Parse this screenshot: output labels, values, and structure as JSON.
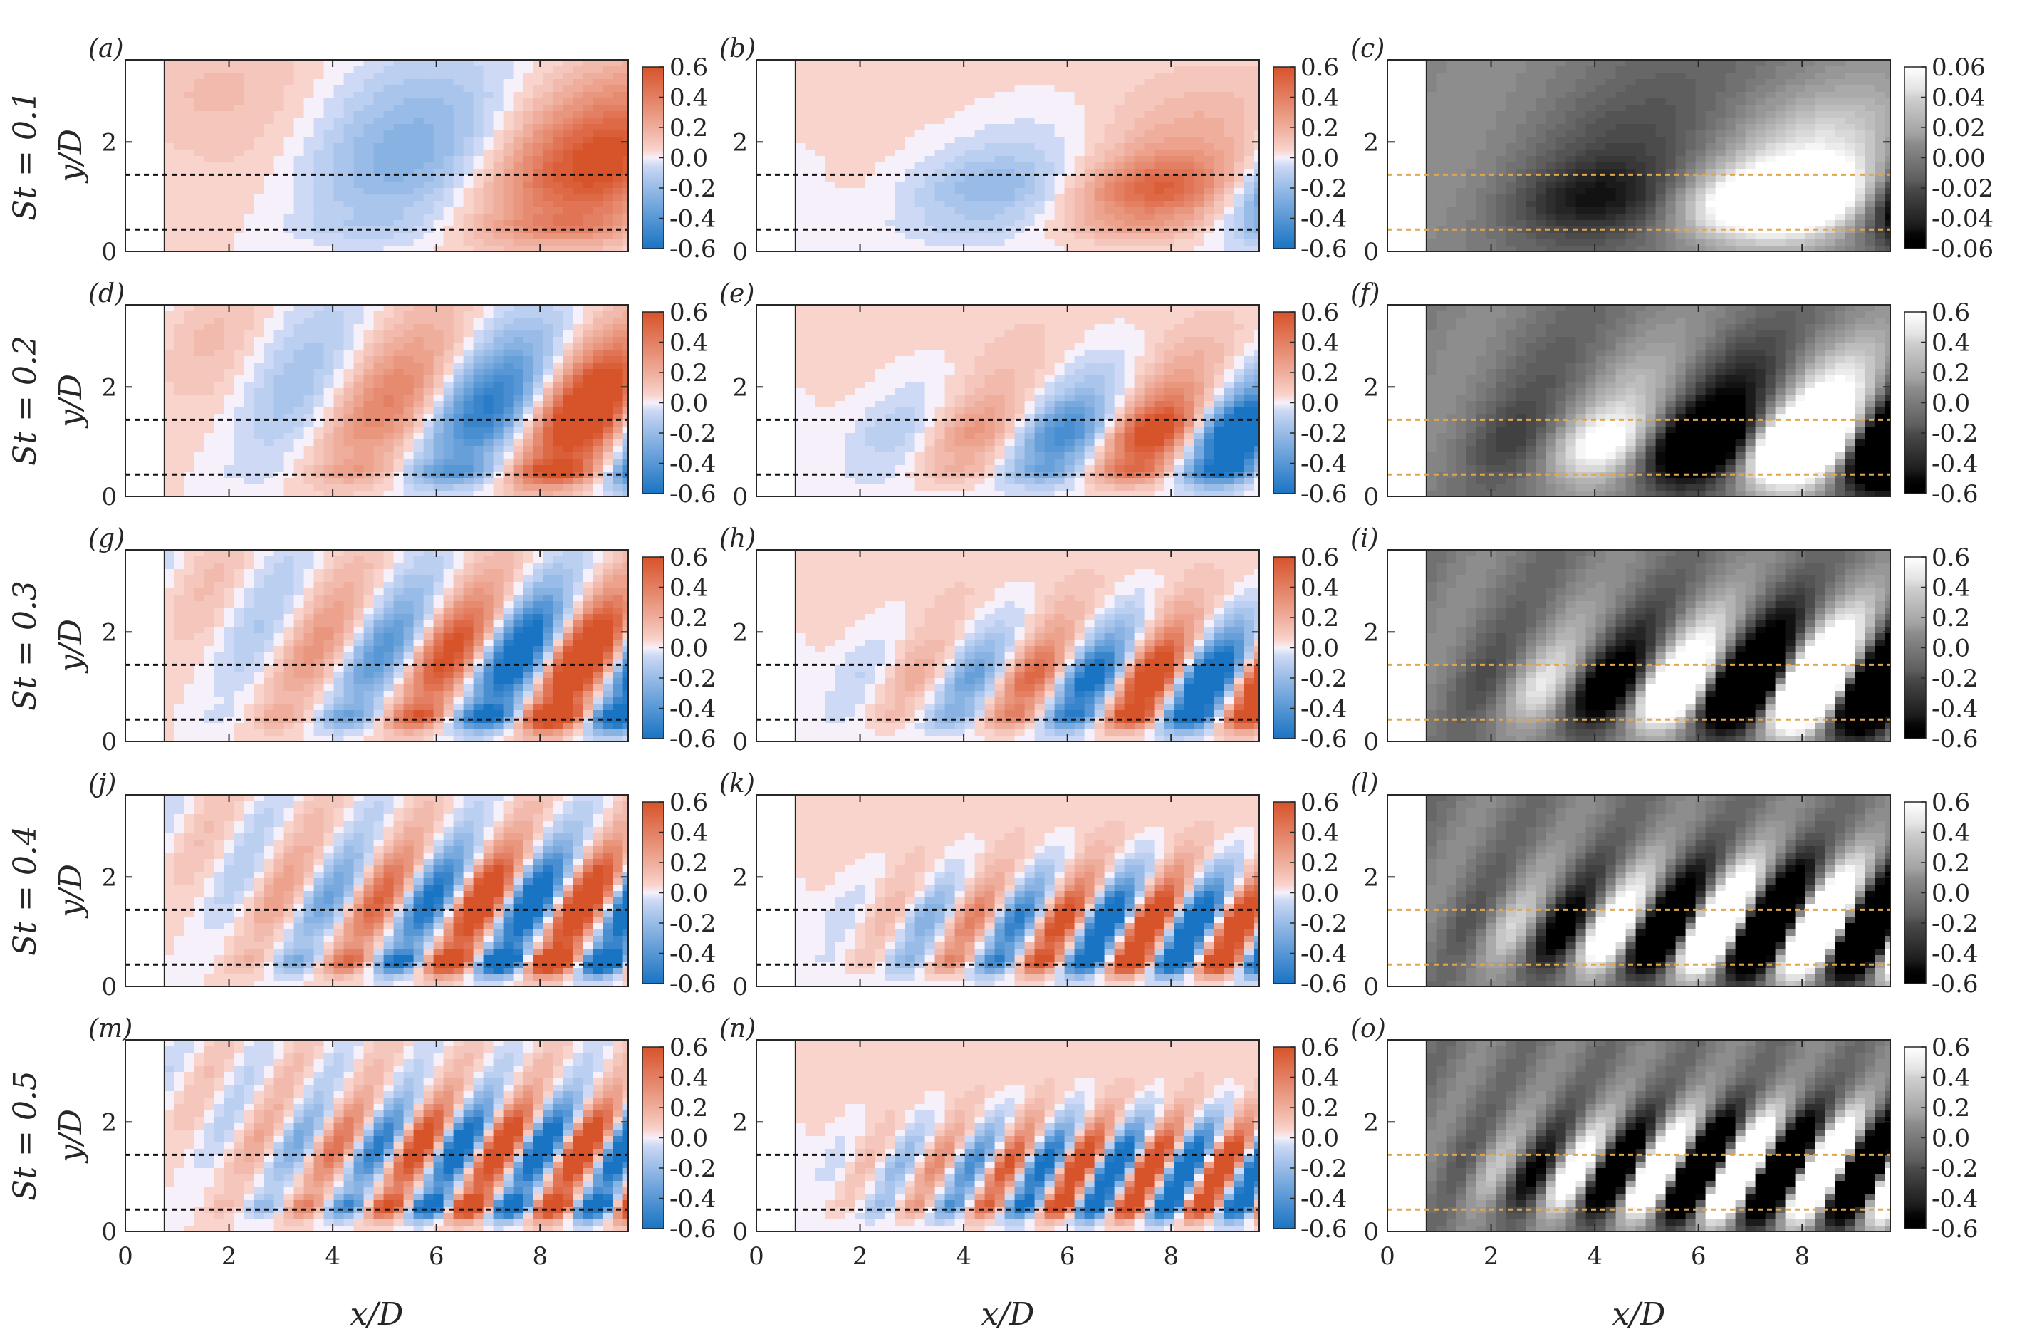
{
  "chart_data": {
    "type": "heatmap",
    "title": "",
    "xlabel": "x/D",
    "ylabel": "y/D",
    "xlim": [
      0,
      9.7
    ],
    "ylim": [
      0,
      3.5
    ],
    "x_ticks": [
      0,
      2,
      4,
      6,
      8
    ],
    "y_ticks": [
      0,
      2
    ],
    "x_tick_labels": [
      "0",
      "2",
      "4",
      "6",
      "8"
    ],
    "y_tick_labels": [
      "0",
      "2"
    ],
    "masked_region_x": [
      0,
      0.75
    ],
    "dashed_lines_y": [
      1.4,
      0.4
    ],
    "rows": [
      {
        "label": "St = 0.1",
        "st": 0.1
      },
      {
        "label": "St = 0.2",
        "st": 0.2
      },
      {
        "label": "St = 0.3",
        "st": 0.3
      },
      {
        "label": "St = 0.4",
        "st": 0.4
      },
      {
        "label": "St = 0.5",
        "st": 0.5
      }
    ],
    "columns": [
      {
        "colormap": "diverging-blue-red",
        "dash_color": "#111111"
      },
      {
        "colormap": "diverging-blue-red",
        "dash_color": "#111111"
      },
      {
        "colormap": "grayscale",
        "dash_color": "#e0a84a"
      }
    ],
    "panel_labels": [
      "(a)",
      "(b)",
      "(c)",
      "(d)",
      "(e)",
      "(f)",
      "(g)",
      "(h)",
      "(i)",
      "(j)",
      "(k)",
      "(l)",
      "(m)",
      "(n)",
      "(o)"
    ],
    "colorbars": [
      [
        {
          "ticks": [
            "0.6",
            "0.4",
            "0.2",
            "0.0",
            "-0.2",
            "-0.4",
            "-0.6"
          ],
          "range": [
            -0.6,
            0.6
          ]
        },
        {
          "ticks": [
            "0.6",
            "0.4",
            "0.2",
            "0.0",
            "-0.2",
            "-0.4",
            "-0.6"
          ],
          "range": [
            -0.6,
            0.6
          ]
        },
        {
          "ticks": [
            "0.06",
            "0.04",
            "0.02",
            "0.00",
            "-0.02",
            "-0.04",
            "-0.06"
          ],
          "range": [
            -0.06,
            0.06
          ]
        }
      ],
      [
        {
          "ticks": [
            "0.6",
            "0.4",
            "0.2",
            "0.0",
            "-0.2",
            "-0.4",
            "-0.6"
          ],
          "range": [
            -0.6,
            0.6
          ]
        },
        {
          "ticks": [
            "0.6",
            "0.4",
            "0.2",
            "0.0",
            "-0.2",
            "-0.4",
            "-0.6"
          ],
          "range": [
            -0.6,
            0.6
          ]
        },
        {
          "ticks": [
            "0.6",
            "0.4",
            "0.2",
            "0.0",
            "-0.2",
            "-0.4",
            "-0.6"
          ],
          "range": [
            -0.6,
            0.6
          ]
        }
      ],
      [
        {
          "ticks": [
            "0.6",
            "0.4",
            "0.2",
            "0.0",
            "-0.2",
            "-0.4",
            "-0.6"
          ],
          "range": [
            -0.6,
            0.6
          ]
        },
        {
          "ticks": [
            "0.6",
            "0.4",
            "0.2",
            "0.0",
            "-0.2",
            "-0.4",
            "-0.6"
          ],
          "range": [
            -0.6,
            0.6
          ]
        },
        {
          "ticks": [
            "0.6",
            "0.4",
            "0.2",
            "0.0",
            "-0.2",
            "-0.4",
            "-0.6"
          ],
          "range": [
            -0.6,
            0.6
          ]
        }
      ],
      [
        {
          "ticks": [
            "0.6",
            "0.4",
            "0.2",
            "0.0",
            "-0.2",
            "-0.4",
            "-0.6"
          ],
          "range": [
            -0.6,
            0.6
          ]
        },
        {
          "ticks": [
            "0.6",
            "0.4",
            "0.2",
            "0.0",
            "-0.2",
            "-0.4",
            "-0.6"
          ],
          "range": [
            -0.6,
            0.6
          ]
        },
        {
          "ticks": [
            "0.6",
            "0.4",
            "0.2",
            "0.0",
            "-0.2",
            "-0.4",
            "-0.6"
          ],
          "range": [
            -0.6,
            0.6
          ]
        }
      ],
      [
        {
          "ticks": [
            "0.6",
            "0.4",
            "0.2",
            "0.0",
            "-0.2",
            "-0.4",
            "-0.6"
          ],
          "range": [
            -0.6,
            0.6
          ]
        },
        {
          "ticks": [
            "0.6",
            "0.4",
            "0.2",
            "0.0",
            "-0.2",
            "-0.4",
            "-0.6"
          ],
          "range": [
            -0.6,
            0.6
          ]
        },
        {
          "ticks": [
            "0.6",
            "0.4",
            "0.2",
            "0.0",
            "-0.2",
            "-0.4",
            "-0.6"
          ],
          "range": [
            -0.6,
            0.6
          ]
        }
      ]
    ],
    "colors": {
      "red": "#d7532a",
      "blue": "#1a74c4",
      "white": "#ffffff",
      "light_red": "#fde3e0",
      "light_blue": "#e3e6fb",
      "gray_mid": "#7a7a7a",
      "axis": "#262626"
    }
  }
}
